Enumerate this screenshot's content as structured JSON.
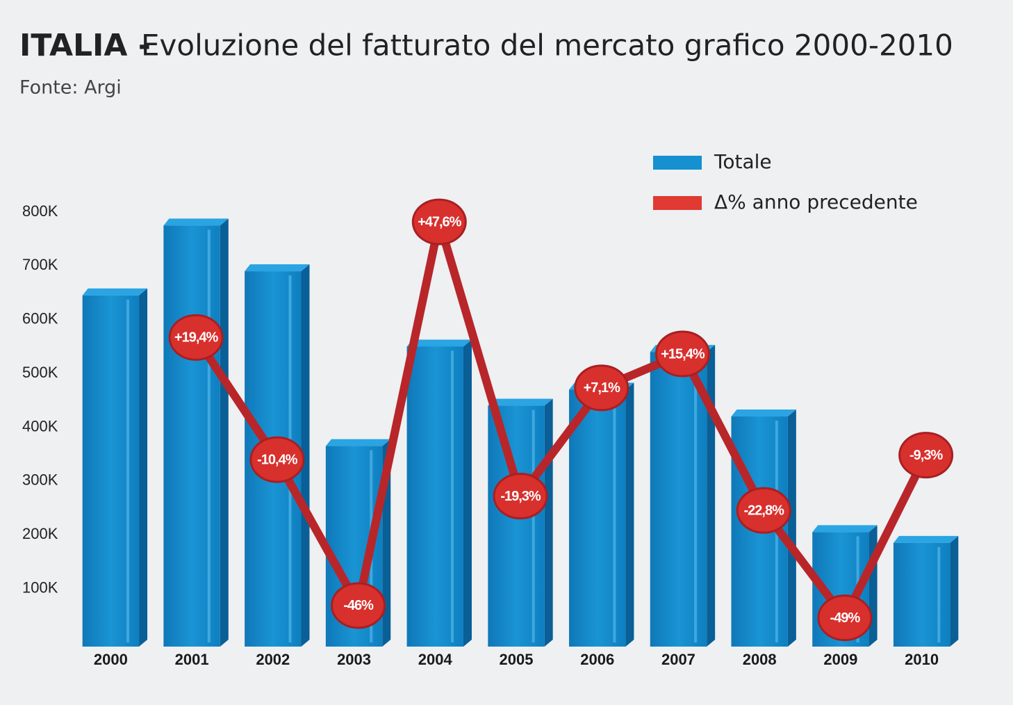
{
  "chart_data": {
    "type": "bar",
    "title_bold": "ITALIA -",
    "title": "Evoluzione del fatturato del mercato grafico 2000-2010",
    "source": "Fonte: Argi",
    "categories": [
      "2000",
      "2001",
      "2002",
      "2003",
      "2004",
      "2005",
      "2006",
      "2007",
      "2008",
      "2009",
      "2010"
    ],
    "series": [
      {
        "name": "Totale",
        "type": "bar",
        "color": "#1590d0",
        "values": [
          645000,
          775000,
          690000,
          365000,
          550000,
          440000,
          470000,
          540000,
          420000,
          205000,
          185000
        ]
      },
      {
        "name": "Δ% anno precedente",
        "type": "line",
        "axis": "y2",
        "color": "#e03a33",
        "values": [
          null,
          19.4,
          -10.4,
          -46,
          47.6,
          -19.3,
          7.1,
          15.4,
          -22.8,
          -49,
          -9.3
        ],
        "value_labels": [
          null,
          "+19,4%",
          "-10,4%",
          "-46%",
          "+47,6%",
          "-19,3%",
          "+7,1%",
          "+15,4%",
          "-22,8%",
          "-49%",
          "-9,3%"
        ]
      }
    ],
    "ylim": [
      0,
      800000
    ],
    "yticks": [
      {
        "value": 100000,
        "label": "100K"
      },
      {
        "value": 200000,
        "label": "200K"
      },
      {
        "value": 300000,
        "label": "300K"
      },
      {
        "value": 400000,
        "label": "400K"
      },
      {
        "value": 500000,
        "label": "500K"
      },
      {
        "value": 600000,
        "label": "600K"
      },
      {
        "value": 700000,
        "label": "700K"
      },
      {
        "value": 800000,
        "label": "800K"
      }
    ],
    "y2lim": [
      -55,
      50
    ],
    "legend": "top-right"
  }
}
